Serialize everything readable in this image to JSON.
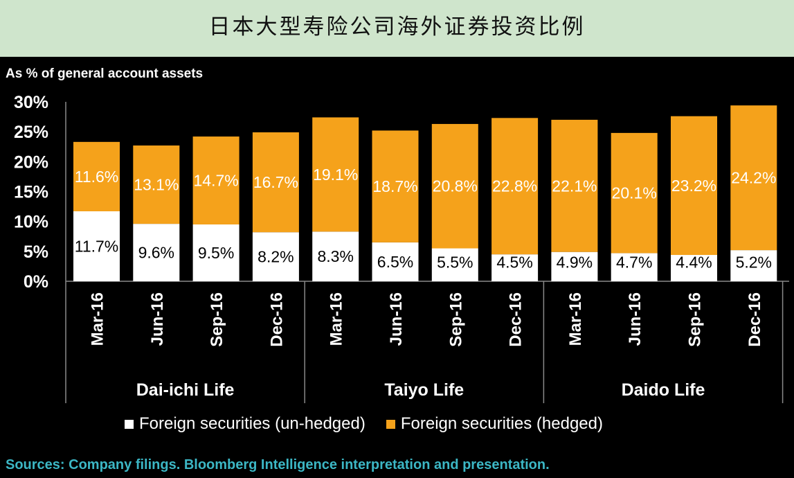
{
  "title": "日本大型寿险公司海外证券投资比例",
  "source": "Sources: Company filings. Bloomberg Intelligence interpretation and presentation.",
  "colors": {
    "unhedged": "#ffffff",
    "hedged": "#f5a21b",
    "background": "#000000",
    "header": "#cfe5cc",
    "source": "#3cb7c5"
  },
  "chart_data": {
    "type": "bar",
    "stacked": true,
    "ylabel": "As % of general account assets",
    "ylim": [
      0,
      30
    ],
    "yticks": [
      "0%",
      "5%",
      "10%",
      "15%",
      "20%",
      "25%",
      "30%"
    ],
    "categories": [
      "Mar-16",
      "Jun-16",
      "Sep-16",
      "Dec-16",
      "Mar-16",
      "Jun-16",
      "Sep-16",
      "Dec-16",
      "Mar-16",
      "Jun-16",
      "Sep-16",
      "Dec-16"
    ],
    "groups": [
      "Dai-ichi Life",
      "Taiyo Life",
      "Daido Life"
    ],
    "series": [
      {
        "name": "Foreign securities (un-hedged)",
        "values": [
          11.7,
          9.6,
          9.5,
          8.2,
          8.3,
          6.5,
          5.5,
          4.5,
          4.9,
          4.7,
          4.4,
          5.2
        ],
        "labels": [
          "11.7%",
          "9.6%",
          "9.5%",
          "8.2%",
          "8.3%",
          "6.5%",
          "5.5%",
          "4.5%",
          "4.9%",
          "4.7%",
          "4.4%",
          "5.2%"
        ]
      },
      {
        "name": "Foreign securities (hedged)",
        "values": [
          11.6,
          13.1,
          14.7,
          16.7,
          19.1,
          18.7,
          20.8,
          22.8,
          22.1,
          20.1,
          23.2,
          24.2
        ],
        "labels": [
          "11.6%",
          "13.1%",
          "14.7%",
          "16.7%",
          "19.1%",
          "18.7%",
          "20.8%",
          "22.8%",
          "22.1%",
          "20.1%",
          "23.2%",
          "24.2%"
        ]
      }
    ],
    "legend": [
      "Foreign securities (un-hedged)",
      "Foreign securities (hedged)"
    ]
  }
}
